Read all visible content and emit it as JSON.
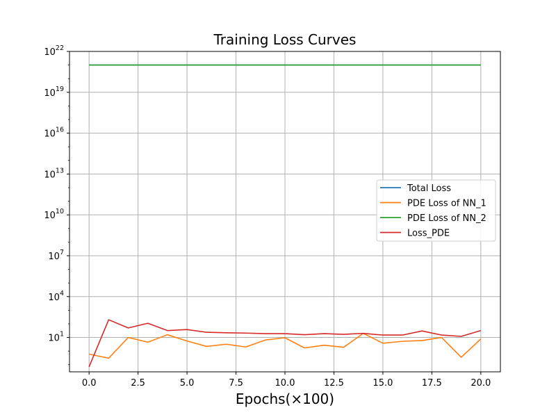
{
  "chart_data": {
    "type": "line",
    "title": "Training Loss Curves",
    "xlabel": "Epochs(×100)",
    "ylabel": "",
    "yscale": "log",
    "xlim": [
      -1.0,
      21.0
    ],
    "ylim": [
      0.03,
      1e+22
    ],
    "grid": true,
    "legend_position": "center-right",
    "x_ticks": [
      "0.0",
      "2.5",
      "5.0",
      "7.5",
      "10.0",
      "12.5",
      "15.0",
      "17.5",
      "20.0"
    ],
    "x_tick_values": [
      0,
      2.5,
      5,
      7.5,
      10,
      12.5,
      15,
      17.5,
      20
    ],
    "y_ticks": [
      {
        "base": "10",
        "exp": "1",
        "value": 10
      },
      {
        "base": "10",
        "exp": "4",
        "value": 10000.0
      },
      {
        "base": "10",
        "exp": "7",
        "value": 10000000.0
      },
      {
        "base": "10",
        "exp": "10",
        "value": 10000000000.0
      },
      {
        "base": "10",
        "exp": "13",
        "value": 10000000000000.0
      },
      {
        "base": "10",
        "exp": "16",
        "value": 1e+16
      },
      {
        "base": "10",
        "exp": "19",
        "value": 1e+19
      },
      {
        "base": "10",
        "exp": "22",
        "value": 1e+22
      }
    ],
    "x": [
      0,
      1,
      2,
      3,
      4,
      5,
      6,
      7,
      8,
      9,
      10,
      11,
      12,
      13,
      14,
      15,
      16,
      17,
      18,
      19,
      20
    ],
    "series": [
      {
        "name": "Total Loss",
        "color": "#1f77b4",
        "values": [
          1e+21,
          1e+21,
          1e+21,
          1e+21,
          1e+21,
          1e+21,
          1e+21,
          1e+21,
          1e+21,
          1e+21,
          1e+21,
          1e+21,
          1e+21,
          1e+21,
          1e+21,
          1e+21,
          1e+21,
          1e+21,
          1e+21,
          1e+21,
          1e+21
        ]
      },
      {
        "name": "PDE Loss of NN_1",
        "color": "#ff7f0e",
        "values": [
          0.6,
          0.3,
          10,
          4.5,
          16,
          5.5,
          2.2,
          3.2,
          2.0,
          6.5,
          9.5,
          1.7,
          2.7,
          1.9,
          20,
          3.8,
          5.2,
          6.0,
          10,
          0.35,
          7.8
        ]
      },
      {
        "name": "PDE Loss of NN_2",
        "color": "#2ca02c",
        "values": [
          1e+21,
          1e+21,
          1e+21,
          1e+21,
          1e+21,
          1e+21,
          1e+21,
          1e+21,
          1e+21,
          1e+21,
          1e+21,
          1e+21,
          1e+21,
          1e+21,
          1e+21,
          1e+21,
          1e+21,
          1e+21,
          1e+21,
          1e+21,
          1e+21
        ]
      },
      {
        "name": "Loss_PDE",
        "color": "#d62728",
        "values": [
          0.07,
          200,
          50,
          110,
          32,
          38,
          24,
          22,
          21,
          19,
          19,
          16,
          19,
          17,
          20,
          15,
          15,
          30,
          15,
          12,
          32
        ]
      }
    ]
  }
}
